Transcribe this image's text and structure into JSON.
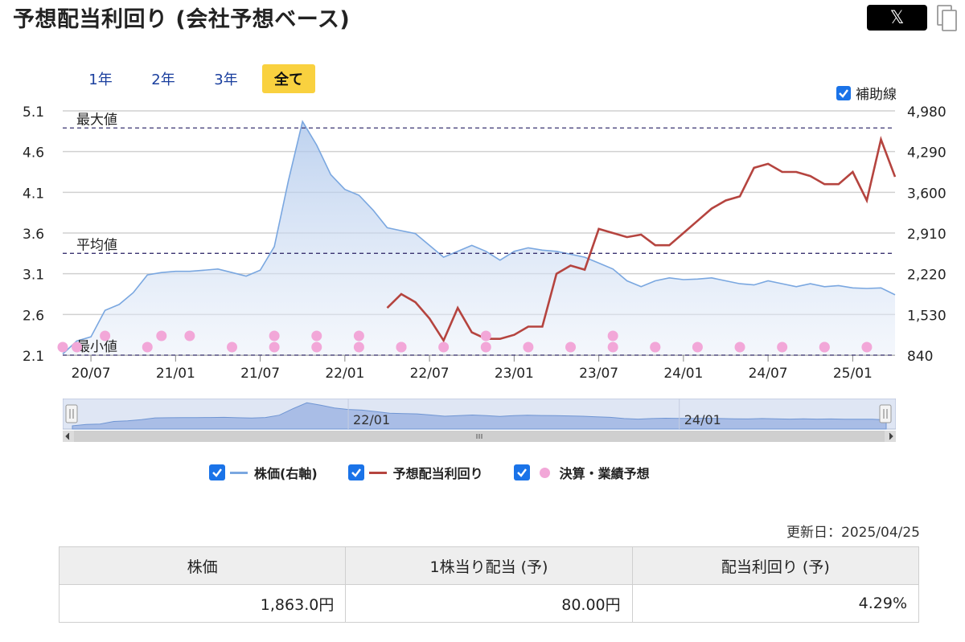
{
  "header": {
    "title": "予想配当利回り (会社予想ベース)",
    "share_x_label": "𝕏"
  },
  "range_tabs": [
    {
      "label": "1年",
      "active": false
    },
    {
      "label": "2年",
      "active": false
    },
    {
      "label": "3年",
      "active": false
    },
    {
      "label": "全て",
      "active": true
    }
  ],
  "aux_toggle": {
    "label": "補助線",
    "checked": true
  },
  "chart_data": {
    "type": "line",
    "left_axis": {
      "ticks": [
        "5.1",
        "4.6",
        "4.1",
        "3.6",
        "3.1",
        "2.6",
        "2.1"
      ],
      "ylim": [
        2.1,
        5.1
      ]
    },
    "right_axis": {
      "ticks": [
        "4,980",
        "4,290",
        "3,600",
        "2,910",
        "2,220",
        "1,530",
        "840"
      ],
      "ylim": [
        840,
        4980
      ]
    },
    "x_ticks": [
      "20/07",
      "21/01",
      "21/07",
      "22/01",
      "22/07",
      "23/01",
      "23/07",
      "24/01",
      "24/07",
      "25/01"
    ],
    "grid": true,
    "reference_lines": [
      {
        "label": "最大値",
        "value": 4.89
      },
      {
        "label": "平均値",
        "value": 3.35
      },
      {
        "label": "最小値",
        "value": 2.1
      }
    ],
    "series": [
      {
        "name": "株価(右軸)",
        "axis": "right",
        "color": "#7aa7e0",
        "x": [
          "2020-05",
          "2020-06",
          "2020-07",
          "2020-08",
          "2020-09",
          "2020-10",
          "2020-11",
          "2020-12",
          "2021-01",
          "2021-02",
          "2021-03",
          "2021-04",
          "2021-05",
          "2021-06",
          "2021-07",
          "2021-08",
          "2021-09",
          "2021-10",
          "2021-11",
          "2021-12",
          "2022-01",
          "2022-02",
          "2022-03",
          "2022-04",
          "2022-05",
          "2022-06",
          "2022-07",
          "2022-08",
          "2022-09",
          "2022-10",
          "2022-11",
          "2022-12",
          "2023-01",
          "2023-02",
          "2023-03",
          "2023-04",
          "2023-05",
          "2023-06",
          "2023-07",
          "2023-08",
          "2023-09",
          "2023-10",
          "2023-11",
          "2023-12",
          "2024-01",
          "2024-02",
          "2024-03",
          "2024-04",
          "2024-05",
          "2024-06",
          "2024-07",
          "2024-08",
          "2024-09",
          "2024-10",
          "2024-11",
          "2024-12",
          "2025-01",
          "2025-02",
          "2025-03",
          "2025-04"
        ],
        "values": [
          860,
          1080,
          1150,
          1600,
          1700,
          1900,
          2200,
          2240,
          2260,
          2260,
          2280,
          2300,
          2240,
          2180,
          2280,
          2680,
          3800,
          4800,
          4400,
          3900,
          3650,
          3550,
          3300,
          3000,
          2950,
          2900,
          2700,
          2500,
          2600,
          2700,
          2600,
          2450,
          2600,
          2660,
          2620,
          2600,
          2550,
          2500,
          2400,
          2300,
          2100,
          2000,
          2100,
          2150,
          2120,
          2130,
          2150,
          2100,
          2050,
          2030,
          2100,
          2050,
          2000,
          2050,
          2000,
          2020,
          1980,
          1970,
          1980,
          1863
        ]
      },
      {
        "name": "予想配当利回り",
        "axis": "left",
        "color": "#b5443f",
        "x": [
          "2022-04",
          "2022-05",
          "2022-06",
          "2022-07",
          "2022-08",
          "2022-09",
          "2022-10",
          "2022-11",
          "2022-12",
          "2023-01",
          "2023-02",
          "2023-03",
          "2023-04",
          "2023-05",
          "2023-06",
          "2023-07",
          "2023-08",
          "2023-09",
          "2023-10",
          "2023-11",
          "2023-12",
          "2024-01",
          "2024-02",
          "2024-03",
          "2024-04",
          "2024-05",
          "2024-06",
          "2024-07",
          "2024-08",
          "2024-09",
          "2024-10",
          "2024-11",
          "2024-12",
          "2025-01",
          "2025-02",
          "2025-03",
          "2025-04"
        ],
        "values": [
          2.68,
          2.85,
          2.75,
          2.55,
          2.28,
          2.68,
          2.38,
          2.3,
          2.3,
          2.35,
          2.45,
          2.45,
          3.1,
          3.2,
          3.15,
          3.65,
          3.6,
          3.55,
          3.58,
          3.45,
          3.45,
          3.6,
          3.75,
          3.9,
          4.0,
          4.05,
          4.4,
          4.45,
          4.35,
          4.35,
          4.3,
          4.2,
          4.2,
          4.35,
          4.0,
          4.75,
          4.29
        ]
      }
    ],
    "events": {
      "name": "決算・業績予想",
      "color": "#f2a7d8",
      "dates": [
        "2020-05",
        "2020-06",
        "2020-08",
        "2020-11",
        "2020-12",
        "2021-02",
        "2021-05",
        "2021-08",
        "2021-08",
        "2021-11",
        "2021-11",
        "2022-02",
        "2022-02",
        "2022-05",
        "2022-05",
        "2022-08",
        "2022-11",
        "2022-11",
        "2023-02",
        "2023-05",
        "2023-08",
        "2023-08",
        "2023-11",
        "2023-11",
        "2024-02",
        "2024-05",
        "2024-08",
        "2024-11",
        "2024-11",
        "2025-02"
      ],
      "rows": [
        0,
        0,
        1,
        0,
        1,
        1,
        0,
        1,
        0,
        1,
        0,
        1,
        0,
        0,
        0,
        0,
        1,
        0,
        0,
        0,
        1,
        0,
        0,
        0,
        0,
        0,
        0,
        0,
        0,
        0
      ]
    },
    "navigator_ticks": [
      "22/01",
      "24/01"
    ]
  },
  "legend": [
    {
      "label": "株価(右軸)",
      "type": "line",
      "color": "#7aa7e0",
      "checked": true
    },
    {
      "label": "予想配当利回り",
      "type": "line",
      "color": "#b5443f",
      "checked": true
    },
    {
      "label": "決算・業績予想",
      "type": "dot",
      "color": "#f2a7d8",
      "checked": true
    }
  ],
  "updated": "更新日：2025/04/25",
  "summary_table": {
    "headers": [
      "株価",
      "1株当り配当 (予)",
      "配当利回り (予)"
    ],
    "values": [
      "1,863.0円",
      "80.00円",
      "4.29%"
    ]
  }
}
